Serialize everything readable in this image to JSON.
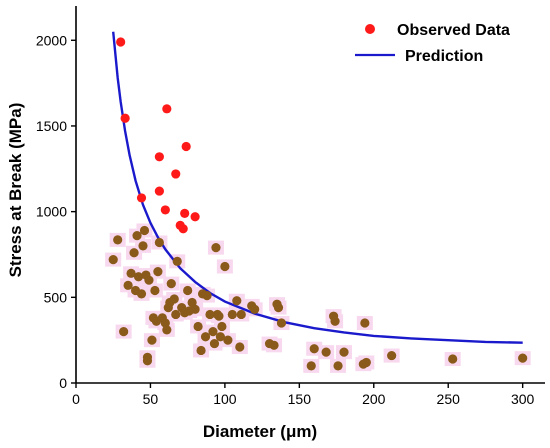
{
  "chart_data": {
    "type": "scatter",
    "xlabel": "Diameter (μm)",
    "ylabel": "Stress at Break (MPa)",
    "xlim": [
      0,
      315
    ],
    "ylim": [
      0,
      2200
    ],
    "xticks": [
      0,
      50,
      100,
      150,
      200,
      250,
      300
    ],
    "yticks": [
      0,
      500,
      1000,
      1500,
      2000
    ],
    "grid": false,
    "legend_position": "top-right",
    "colors": {
      "observed": "#ff1a1a",
      "observed_overlap": "#8a5a1a",
      "highlight": "#f7d8ee",
      "prediction": "#1a1acc"
    },
    "series": [
      {
        "name": "Observed Data",
        "type": "scatter",
        "points": [
          {
            "x": 30,
            "y": 1990
          },
          {
            "x": 33,
            "y": 1545
          },
          {
            "x": 61,
            "y": 1600
          },
          {
            "x": 56,
            "y": 1320
          },
          {
            "x": 74,
            "y": 1380
          },
          {
            "x": 67,
            "y": 1220
          },
          {
            "x": 56,
            "y": 1120
          },
          {
            "x": 44,
            "y": 1080
          },
          {
            "x": 60,
            "y": 1010
          },
          {
            "x": 73,
            "y": 990
          },
          {
            "x": 80,
            "y": 970
          },
          {
            "x": 25,
            "y": 720
          },
          {
            "x": 28,
            "y": 835
          },
          {
            "x": 32,
            "y": 300
          },
          {
            "x": 35,
            "y": 570
          },
          {
            "x": 37,
            "y": 640
          },
          {
            "x": 39,
            "y": 760
          },
          {
            "x": 40,
            "y": 540
          },
          {
            "x": 41,
            "y": 860
          },
          {
            "x": 42,
            "y": 620
          },
          {
            "x": 44,
            "y": 520
          },
          {
            "x": 45,
            "y": 800
          },
          {
            "x": 46,
            "y": 890
          },
          {
            "x": 47,
            "y": 630
          },
          {
            "x": 48,
            "y": 150
          },
          {
            "x": 48,
            "y": 130
          },
          {
            "x": 49,
            "y": 600
          },
          {
            "x": 51,
            "y": 250
          },
          {
            "x": 52,
            "y": 380
          },
          {
            "x": 53,
            "y": 540
          },
          {
            "x": 54,
            "y": 360
          },
          {
            "x": 55,
            "y": 650
          },
          {
            "x": 56,
            "y": 820
          },
          {
            "x": 58,
            "y": 380
          },
          {
            "x": 60,
            "y": 350
          },
          {
            "x": 61,
            "y": 310
          },
          {
            "x": 62,
            "y": 440
          },
          {
            "x": 63,
            "y": 470
          },
          {
            "x": 64,
            "y": 580
          },
          {
            "x": 66,
            "y": 490
          },
          {
            "x": 67,
            "y": 400
          },
          {
            "x": 68,
            "y": 710
          },
          {
            "x": 70,
            "y": 920
          },
          {
            "x": 71,
            "y": 440
          },
          {
            "x": 72,
            "y": 900
          },
          {
            "x": 73,
            "y": 410
          },
          {
            "x": 75,
            "y": 540
          },
          {
            "x": 76,
            "y": 420
          },
          {
            "x": 78,
            "y": 470
          },
          {
            "x": 80,
            "y": 430
          },
          {
            "x": 82,
            "y": 330
          },
          {
            "x": 84,
            "y": 190
          },
          {
            "x": 85,
            "y": 520
          },
          {
            "x": 87,
            "y": 270
          },
          {
            "x": 88,
            "y": 510
          },
          {
            "x": 90,
            "y": 400
          },
          {
            "x": 92,
            "y": 300
          },
          {
            "x": 93,
            "y": 230
          },
          {
            "x": 94,
            "y": 790
          },
          {
            "x": 95,
            "y": 400
          },
          {
            "x": 96,
            "y": 390
          },
          {
            "x": 97,
            "y": 270
          },
          {
            "x": 98,
            "y": 330
          },
          {
            "x": 100,
            "y": 680
          },
          {
            "x": 102,
            "y": 250
          },
          {
            "x": 105,
            "y": 400
          },
          {
            "x": 108,
            "y": 480
          },
          {
            "x": 110,
            "y": 210
          },
          {
            "x": 111,
            "y": 400
          },
          {
            "x": 118,
            "y": 450
          },
          {
            "x": 120,
            "y": 430
          },
          {
            "x": 130,
            "y": 230
          },
          {
            "x": 133,
            "y": 220
          },
          {
            "x": 135,
            "y": 460
          },
          {
            "x": 136,
            "y": 440
          },
          {
            "x": 138,
            "y": 350
          },
          {
            "x": 158,
            "y": 100
          },
          {
            "x": 160,
            "y": 200
          },
          {
            "x": 168,
            "y": 180
          },
          {
            "x": 173,
            "y": 390
          },
          {
            "x": 174,
            "y": 360
          },
          {
            "x": 176,
            "y": 100
          },
          {
            "x": 180,
            "y": 180
          },
          {
            "x": 193,
            "y": 110
          },
          {
            "x": 194,
            "y": 350
          },
          {
            "x": 195,
            "y": 120
          },
          {
            "x": 212,
            "y": 160
          },
          {
            "x": 253,
            "y": 140
          },
          {
            "x": 300,
            "y": 145
          }
        ]
      },
      {
        "name": "Prediction",
        "type": "line",
        "points": [
          {
            "x": 25,
            "y": 2050
          },
          {
            "x": 28,
            "y": 1780
          },
          {
            "x": 30,
            "y": 1640
          },
          {
            "x": 33,
            "y": 1470
          },
          {
            "x": 36,
            "y": 1330
          },
          {
            "x": 40,
            "y": 1180
          },
          {
            "x": 45,
            "y": 1040
          },
          {
            "x": 50,
            "y": 935
          },
          {
            "x": 55,
            "y": 850
          },
          {
            "x": 60,
            "y": 780
          },
          {
            "x": 70,
            "y": 670
          },
          {
            "x": 80,
            "y": 590
          },
          {
            "x": 90,
            "y": 525
          },
          {
            "x": 100,
            "y": 475
          },
          {
            "x": 120,
            "y": 405
          },
          {
            "x": 140,
            "y": 355
          },
          {
            "x": 160,
            "y": 320
          },
          {
            "x": 180,
            "y": 295
          },
          {
            "x": 200,
            "y": 275
          },
          {
            "x": 225,
            "y": 260
          },
          {
            "x": 250,
            "y": 250
          },
          {
            "x": 275,
            "y": 240
          },
          {
            "x": 300,
            "y": 235
          }
        ]
      }
    ]
  }
}
